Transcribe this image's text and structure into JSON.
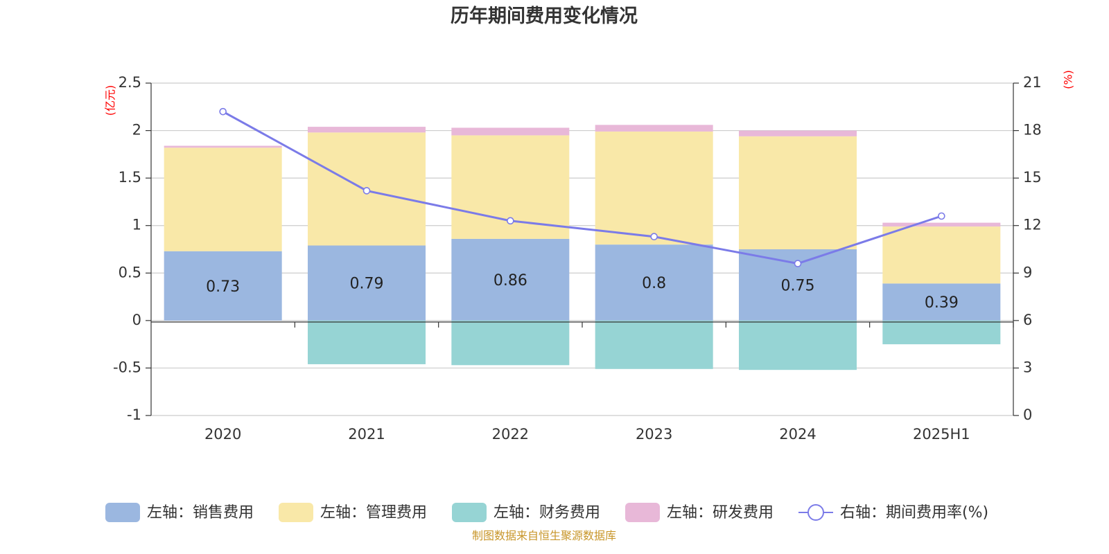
{
  "chart_data": {
    "type": "bar",
    "stacked": true,
    "title": "历年期间费用变化情况",
    "left_axis_unit": "(亿元)",
    "right_axis_unit": "(%)",
    "categories": [
      "2020",
      "2021",
      "2022",
      "2023",
      "2024",
      "2025H1"
    ],
    "ylim_left": [
      -1,
      2.5
    ],
    "yticks_left": [
      2.5,
      2,
      1.5,
      1,
      0.5,
      0,
      -0.5,
      -1
    ],
    "ylim_right": [
      0,
      21
    ],
    "yticks_right": [
      21,
      18,
      15,
      12,
      9,
      6,
      3,
      0
    ],
    "grid": true,
    "legend_position": "bottom",
    "series": [
      {
        "name": "左轴：销售费用",
        "axis": "left",
        "color": "#9bb7e0",
        "values": [
          0.73,
          0.79,
          0.86,
          0.8,
          0.75,
          0.39
        ],
        "labels": [
          "0.73",
          "0.79",
          "0.86",
          "0.8",
          "0.75",
          "0.39"
        ]
      },
      {
        "name": "左轴：管理费用",
        "axis": "left",
        "color": "#f9e8a8",
        "values": [
          1.09,
          1.19,
          1.09,
          1.19,
          1.19,
          0.6
        ]
      },
      {
        "name": "左轴：财务费用",
        "axis": "left",
        "color": "#96d4d4",
        "values": [
          0,
          -0.46,
          -0.47,
          -0.51,
          -0.52,
          -0.25
        ]
      },
      {
        "name": "左轴：研发费用",
        "axis": "left",
        "color": "#e8b8d8",
        "values": [
          0.02,
          0.06,
          0.08,
          0.07,
          0.06,
          0.04
        ]
      },
      {
        "name": "右轴：期间费用率(%)",
        "axis": "right",
        "type": "line",
        "color": "#7b7be8",
        "values": [
          19.2,
          14.2,
          12.3,
          11.3,
          9.6,
          12.6
        ]
      }
    ],
    "source": "制图数据来自恒生聚源数据库"
  }
}
